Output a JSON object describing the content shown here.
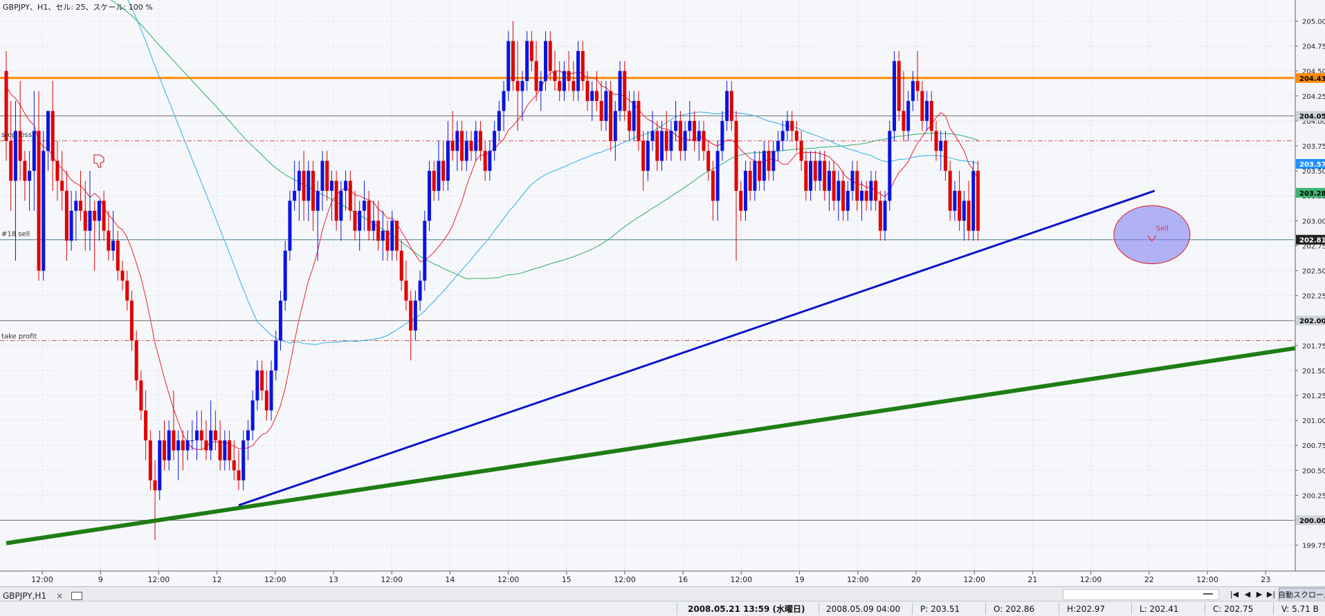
{
  "chart_header": "GBPJPY、H1、セル: 25、スケール: 100 %",
  "price_levels": [
    "205.00",
    "204.75",
    "204.50",
    "204.25",
    "204.00",
    "203.75",
    "203.50",
    "203.25",
    "203.00",
    "202.75",
    "202.50",
    "202.25",
    "202.00",
    "201.75",
    "201.50",
    "201.25",
    "201.00",
    "200.75",
    "200.50",
    "200.25",
    "200.00",
    "199.75"
  ],
  "time_labels": [
    "12:00",
    "9",
    "12:00",
    "12",
    "12:00",
    "13",
    "12:00",
    "14",
    "12:00",
    "15",
    "12:00",
    "16",
    "12:00",
    "19",
    "12:00",
    "20",
    "12:00",
    "21",
    "12:00",
    "22",
    "12:00",
    "23"
  ],
  "line_labels": {
    "stop_loss": "stop loss",
    "sell_order": "#18 sell",
    "take_profit": "take profit",
    "sell_marker": "Sell"
  },
  "axis_badges": [
    {
      "value": "204.43",
      "color": "#ff8c00",
      "text_color": "#000000"
    },
    {
      "value": "204.05",
      "color": "#cfd2d8",
      "text_color": "#000000"
    },
    {
      "value": "203.57",
      "color": "#1e90ff",
      "text_color": "#ffffff"
    },
    {
      "value": "203.28",
      "color": "#3cb371",
      "text_color": "#000000"
    },
    {
      "value": "202.81",
      "color": "#222222",
      "text_color": "#ffffff"
    },
    {
      "value": "202.00",
      "color": "#cfd2d8",
      "text_color": "#000000"
    },
    {
      "value": "200.00",
      "color": "#cfd2d8",
      "text_color": "#000000"
    }
  ],
  "colors": {
    "bull": "#0a14e0",
    "bear": "#e00000",
    "ma_fast": "#e8323c",
    "ma_mid": "#3cb4e6",
    "ma_slow": "#3cb371",
    "resistance": "#ff8c00",
    "trend_blue": "#0a14c8",
    "trend_green": "#1e7d14",
    "stop_loss": "#d05050",
    "grid": "#dfe3ea"
  },
  "chart_data": {
    "type": "candlestick",
    "symbol": "GBPJPY",
    "timeframe": "H1",
    "ylim": [
      199.6,
      205.1
    ],
    "horizontal_lines": [
      {
        "name": "resistance",
        "price": 204.43
      },
      {
        "name": "level",
        "price": 204.05
      },
      {
        "name": "stop_loss",
        "price": 203.8
      },
      {
        "name": "sell_order",
        "price": 202.81
      },
      {
        "name": "level",
        "price": 202.0
      },
      {
        "name": "take_profit",
        "price": 201.8
      },
      {
        "name": "level",
        "price": 200.0
      }
    ],
    "trendlines": [
      {
        "name": "blue_support",
        "from_bar": 50,
        "from_price": 200.15,
        "to_bar": 247,
        "to_price": 203.3
      },
      {
        "name": "green_support",
        "from_bar": 0,
        "from_price": 199.77,
        "to_bar": 281,
        "to_price": 201.75
      }
    ],
    "ohlc": [
      [
        204.5,
        204.7,
        203.6,
        203.8
      ],
      [
        203.8,
        204.2,
        203.1,
        203.4
      ],
      [
        203.4,
        204.2,
        202.6,
        203.9
      ],
      [
        203.9,
        204.4,
        203.4,
        203.6
      ],
      [
        203.6,
        203.7,
        203.2,
        203.4
      ],
      [
        203.4,
        203.7,
        203.1,
        203.5
      ],
      [
        203.5,
        204.3,
        203.1,
        203.9
      ],
      [
        203.9,
        204.3,
        202.4,
        202.5
      ],
      [
        202.5,
        203.9,
        202.4,
        203.7
      ],
      [
        203.7,
        204.1,
        203.5,
        204.1
      ],
      [
        204.1,
        204.4,
        203.3,
        203.6
      ],
      [
        203.6,
        203.8,
        203.2,
        203.4
      ],
      [
        203.4,
        203.7,
        203.1,
        203.3
      ],
      [
        203.3,
        203.5,
        202.6,
        202.8
      ],
      [
        202.8,
        203.3,
        202.7,
        203.1
      ],
      [
        203.1,
        203.3,
        202.8,
        203.2
      ],
      [
        203.2,
        203.5,
        203.0,
        203.1
      ],
      [
        203.1,
        203.4,
        202.7,
        202.9
      ],
      [
        202.9,
        203.5,
        202.7,
        203.1
      ],
      [
        203.1,
        203.2,
        202.5,
        203.0
      ],
      [
        203.0,
        203.2,
        202.8,
        203.2
      ],
      [
        203.2,
        203.3,
        202.8,
        202.9
      ],
      [
        202.9,
        203.1,
        202.6,
        202.7
      ],
      [
        202.7,
        203.1,
        202.6,
        202.8
      ],
      [
        202.8,
        202.9,
        202.4,
        202.5
      ],
      [
        202.5,
        202.6,
        202.3,
        202.4
      ],
      [
        202.4,
        202.5,
        202.1,
        202.2
      ],
      [
        202.2,
        202.3,
        201.7,
        201.8
      ],
      [
        201.8,
        201.9,
        201.3,
        201.4
      ],
      [
        201.4,
        201.5,
        201.0,
        201.1
      ],
      [
        201.1,
        201.3,
        200.6,
        200.8
      ],
      [
        200.8,
        200.9,
        200.3,
        200.4
      ],
      [
        200.4,
        200.6,
        199.8,
        200.3
      ],
      [
        200.3,
        200.9,
        200.2,
        200.8
      ],
      [
        200.8,
        201.0,
        200.5,
        200.6
      ],
      [
        200.6,
        201.0,
        200.5,
        200.9
      ],
      [
        200.9,
        201.3,
        200.6,
        200.7
      ],
      [
        200.7,
        200.9,
        200.4,
        200.8
      ],
      [
        200.8,
        200.9,
        200.5,
        200.7
      ],
      [
        200.7,
        200.9,
        200.6,
        200.8
      ],
      [
        200.8,
        201.0,
        200.7,
        200.8
      ],
      [
        200.8,
        201.1,
        200.6,
        200.9
      ],
      [
        200.9,
        201.1,
        200.7,
        200.8
      ],
      [
        200.8,
        201.0,
        200.6,
        200.7
      ],
      [
        200.7,
        201.2,
        200.6,
        200.9
      ],
      [
        200.9,
        201.1,
        200.7,
        200.8
      ],
      [
        200.8,
        201.0,
        200.5,
        200.6
      ],
      [
        200.6,
        200.9,
        200.5,
        200.8
      ],
      [
        200.8,
        200.9,
        200.5,
        200.6
      ],
      [
        200.6,
        200.8,
        200.4,
        200.5
      ],
      [
        200.5,
        200.7,
        200.3,
        200.4
      ],
      [
        200.4,
        200.9,
        200.3,
        200.8
      ],
      [
        200.8,
        201.0,
        200.6,
        200.9
      ],
      [
        200.9,
        201.3,
        200.8,
        201.2
      ],
      [
        201.2,
        201.6,
        201.1,
        201.5
      ],
      [
        201.5,
        201.6,
        201.2,
        201.3
      ],
      [
        201.3,
        201.5,
        201.0,
        201.1
      ],
      [
        201.1,
        201.6,
        201.0,
        201.5
      ],
      [
        201.5,
        201.9,
        201.4,
        201.8
      ],
      [
        201.8,
        202.3,
        201.7,
        202.2
      ],
      [
        202.2,
        202.8,
        202.1,
        202.7
      ],
      [
        202.7,
        203.3,
        202.6,
        203.2
      ],
      [
        203.2,
        203.6,
        203.1,
        203.3
      ],
      [
        203.3,
        203.6,
        203.0,
        203.5
      ],
      [
        203.5,
        203.7,
        203.0,
        203.2
      ],
      [
        203.2,
        203.6,
        203.0,
        203.5
      ],
      [
        203.5,
        203.6,
        202.9,
        203.1
      ],
      [
        203.1,
        203.4,
        202.6,
        203.3
      ],
      [
        203.3,
        203.7,
        203.1,
        203.6
      ],
      [
        203.6,
        203.7,
        203.2,
        203.3
      ],
      [
        203.3,
        203.5,
        203.0,
        203.4
      ],
      [
        203.4,
        203.5,
        202.9,
        203.0
      ],
      [
        203.0,
        203.4,
        202.8,
        203.3
      ],
      [
        203.3,
        203.5,
        203.1,
        203.4
      ],
      [
        203.4,
        203.5,
        203.0,
        203.1
      ],
      [
        203.1,
        203.3,
        202.8,
        202.9
      ],
      [
        202.9,
        203.2,
        202.7,
        203.1
      ],
      [
        203.1,
        203.4,
        202.9,
        203.2
      ],
      [
        203.2,
        203.3,
        202.8,
        202.9
      ],
      [
        202.9,
        203.2,
        202.8,
        203.0
      ],
      [
        203.0,
        203.2,
        202.7,
        202.8
      ],
      [
        202.8,
        203.1,
        202.6,
        202.9
      ],
      [
        202.9,
        203.0,
        202.6,
        202.7
      ],
      [
        202.7,
        203.1,
        202.6,
        203.0
      ],
      [
        203.0,
        203.0,
        202.6,
        202.7
      ],
      [
        202.7,
        202.8,
        202.3,
        202.4
      ],
      [
        202.4,
        202.6,
        202.1,
        202.2
      ],
      [
        202.2,
        202.3,
        201.6,
        201.9
      ],
      [
        201.9,
        202.3,
        201.8,
        202.2
      ],
      [
        202.2,
        202.5,
        202.1,
        202.4
      ],
      [
        202.4,
        203.1,
        202.3,
        203.0
      ],
      [
        203.0,
        203.6,
        202.9,
        203.5
      ],
      [
        203.5,
        203.6,
        203.2,
        203.3
      ],
      [
        203.3,
        203.8,
        203.2,
        203.6
      ],
      [
        203.6,
        203.8,
        203.3,
        203.4
      ],
      [
        203.4,
        204.0,
        203.3,
        203.8
      ],
      [
        203.8,
        204.1,
        203.6,
        203.7
      ],
      [
        203.7,
        204.0,
        203.5,
        203.9
      ],
      [
        203.9,
        204.0,
        203.5,
        203.6
      ],
      [
        203.6,
        203.9,
        203.5,
        203.8
      ],
      [
        203.8,
        203.9,
        203.6,
        203.7
      ],
      [
        203.7,
        204.0,
        203.6,
        203.9
      ],
      [
        203.9,
        204.0,
        203.6,
        203.7
      ],
      [
        203.7,
        203.8,
        203.4,
        203.5
      ],
      [
        203.5,
        203.8,
        203.4,
        203.7
      ],
      [
        203.7,
        204.0,
        203.6,
        203.9
      ],
      [
        203.9,
        204.2,
        203.8,
        204.1
      ],
      [
        204.1,
        204.4,
        203.9,
        204.3
      ],
      [
        204.3,
        204.9,
        204.2,
        204.8
      ],
      [
        204.8,
        205.0,
        204.3,
        204.4
      ],
      [
        204.4,
        204.8,
        203.9,
        204.3
      ],
      [
        204.3,
        204.5,
        204.0,
        204.4
      ],
      [
        204.4,
        204.9,
        204.3,
        204.8
      ],
      [
        204.8,
        204.9,
        204.5,
        204.6
      ],
      [
        204.6,
        204.8,
        204.2,
        204.3
      ],
      [
        204.3,
        204.5,
        204.1,
        204.4
      ],
      [
        204.4,
        204.9,
        204.3,
        204.8
      ],
      [
        204.8,
        204.9,
        204.4,
        204.5
      ],
      [
        204.5,
        204.7,
        204.3,
        204.4
      ],
      [
        204.4,
        204.6,
        204.2,
        204.3
      ],
      [
        204.3,
        204.6,
        204.2,
        204.5
      ],
      [
        204.5,
        204.7,
        204.3,
        204.4
      ],
      [
        204.4,
        204.6,
        204.2,
        204.3
      ],
      [
        204.3,
        204.8,
        204.2,
        204.7
      ],
      [
        204.7,
        204.8,
        204.3,
        204.4
      ],
      [
        204.4,
        204.5,
        204.1,
        204.2
      ],
      [
        204.2,
        204.4,
        204.0,
        204.3
      ],
      [
        204.3,
        204.5,
        204.1,
        204.2
      ],
      [
        204.2,
        204.4,
        203.9,
        204.0
      ],
      [
        204.0,
        204.4,
        203.9,
        204.3
      ],
      [
        204.3,
        204.4,
        203.7,
        203.8
      ],
      [
        203.8,
        204.2,
        203.6,
        204.1
      ],
      [
        204.1,
        204.6,
        204.0,
        204.5
      ],
      [
        204.5,
        204.6,
        204.0,
        204.1
      ],
      [
        204.1,
        204.3,
        203.8,
        203.9
      ],
      [
        203.9,
        204.3,
        203.8,
        204.2
      ],
      [
        204.2,
        204.3,
        203.7,
        203.8
      ],
      [
        203.8,
        203.9,
        203.3,
        203.5
      ],
      [
        203.5,
        203.9,
        203.4,
        203.8
      ],
      [
        203.8,
        204.1,
        203.7,
        203.9
      ],
      [
        203.9,
        204.0,
        203.5,
        203.6
      ],
      [
        203.6,
        204.0,
        203.5,
        203.9
      ],
      [
        203.9,
        204.1,
        203.6,
        203.7
      ],
      [
        203.7,
        204.0,
        203.6,
        203.9
      ],
      [
        203.9,
        204.2,
        203.8,
        204.0
      ],
      [
        204.0,
        204.1,
        203.6,
        203.7
      ],
      [
        203.7,
        204.0,
        203.6,
        203.9
      ],
      [
        203.9,
        204.2,
        203.8,
        204.0
      ],
      [
        204.0,
        204.1,
        203.7,
        203.8
      ],
      [
        203.8,
        204.0,
        203.6,
        203.9
      ],
      [
        203.9,
        204.0,
        203.6,
        203.7
      ],
      [
        203.7,
        203.8,
        203.4,
        203.5
      ],
      [
        203.5,
        203.6,
        203.0,
        203.2
      ],
      [
        203.2,
        203.8,
        203.0,
        203.7
      ],
      [
        203.7,
        204.1,
        203.6,
        204.0
      ],
      [
        204.0,
        204.4,
        203.9,
        204.3
      ],
      [
        204.3,
        204.4,
        203.9,
        204.0
      ],
      [
        204.0,
        204.1,
        202.6,
        203.3
      ],
      [
        203.3,
        203.4,
        203.0,
        203.1
      ],
      [
        203.1,
        203.6,
        203.0,
        203.5
      ],
      [
        203.5,
        203.6,
        203.2,
        203.3
      ],
      [
        203.3,
        203.7,
        203.2,
        203.6
      ],
      [
        203.6,
        203.7,
        203.3,
        203.4
      ],
      [
        203.4,
        203.8,
        203.3,
        203.7
      ],
      [
        203.7,
        203.8,
        203.4,
        203.5
      ],
      [
        203.5,
        203.8,
        203.4,
        203.7
      ],
      [
        203.7,
        203.9,
        203.6,
        203.8
      ],
      [
        203.8,
        204.0,
        203.7,
        203.9
      ],
      [
        203.9,
        204.1,
        203.8,
        204.0
      ],
      [
        204.0,
        204.1,
        203.8,
        203.9
      ],
      [
        203.9,
        204.0,
        203.7,
        203.8
      ],
      [
        203.8,
        203.9,
        203.5,
        203.6
      ],
      [
        203.6,
        203.7,
        203.2,
        203.3
      ],
      [
        203.3,
        203.7,
        203.2,
        203.6
      ],
      [
        203.6,
        203.7,
        203.3,
        203.4
      ],
      [
        203.4,
        203.7,
        203.3,
        203.6
      ],
      [
        203.6,
        203.7,
        203.2,
        203.3
      ],
      [
        203.3,
        203.6,
        203.1,
        203.5
      ],
      [
        203.5,
        203.6,
        203.1,
        203.2
      ],
      [
        203.2,
        203.5,
        203.0,
        203.4
      ],
      [
        203.4,
        203.5,
        203.0,
        203.1
      ],
      [
        203.1,
        203.4,
        203.0,
        203.3
      ],
      [
        203.3,
        203.6,
        203.2,
        203.5
      ],
      [
        203.5,
        203.6,
        203.1,
        203.2
      ],
      [
        203.2,
        203.4,
        203.0,
        203.3
      ],
      [
        203.3,
        203.4,
        203.1,
        203.2
      ],
      [
        203.2,
        203.5,
        203.1,
        203.4
      ],
      [
        203.4,
        203.5,
        203.1,
        203.2
      ],
      [
        203.2,
        203.3,
        202.8,
        202.9
      ],
      [
        202.9,
        203.3,
        202.8,
        203.2
      ],
      [
        203.2,
        204.0,
        203.1,
        203.9
      ],
      [
        203.9,
        204.7,
        203.8,
        204.6
      ],
      [
        204.6,
        204.7,
        204.0,
        204.1
      ],
      [
        204.1,
        204.5,
        203.8,
        203.9
      ],
      [
        203.9,
        204.3,
        203.8,
        204.2
      ],
      [
        204.2,
        204.5,
        204.1,
        204.4
      ],
      [
        204.4,
        204.7,
        204.2,
        204.3
      ],
      [
        204.3,
        204.4,
        203.9,
        204.0
      ],
      [
        204.0,
        204.3,
        203.9,
        204.2
      ],
      [
        204.2,
        204.3,
        203.8,
        203.9
      ],
      [
        203.9,
        204.0,
        203.6,
        203.7
      ],
      [
        203.7,
        203.9,
        203.5,
        203.8
      ],
      [
        203.8,
        203.9,
        203.4,
        203.5
      ],
      [
        203.5,
        203.6,
        203.0,
        203.1
      ],
      [
        203.1,
        203.4,
        203.0,
        203.3
      ],
      [
        203.3,
        203.5,
        202.9,
        203.0
      ],
      [
        203.0,
        203.3,
        202.8,
        203.2
      ],
      [
        203.2,
        203.4,
        202.8,
        202.9
      ],
      [
        202.9,
        203.6,
        202.8,
        203.5
      ],
      [
        203.5,
        203.6,
        202.8,
        202.9
      ]
    ]
  },
  "bottom": {
    "tab_label": "GBPJPY,H1",
    "tab_close": "×",
    "nav": {
      "first": "|◀",
      "prev": "◀",
      "next": "▶",
      "last": "▶|"
    },
    "autoscroll_label": "自動スクロール"
  },
  "status": {
    "datetime": "2008.05.21 13:59 (水曜日)",
    "bar_time": "2008.05.09 04:00",
    "p": "P: 203.51",
    "o": "O: 202.86",
    "h": "H:202.97",
    "l": "L: 202.41",
    "c": "C: 202.75",
    "v": "V: 5.71 B"
  }
}
